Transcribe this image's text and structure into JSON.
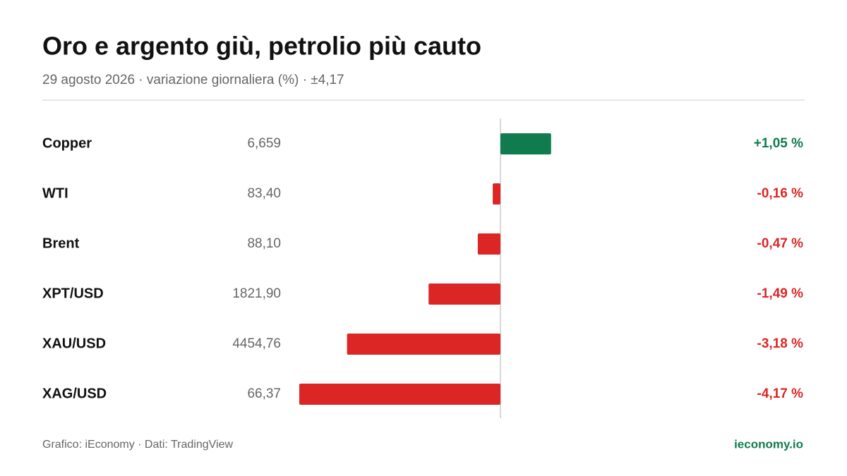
{
  "chart_data": {
    "type": "bar",
    "orientation": "horizontal",
    "title": "Oro e argento giù, petrolio più cauto",
    "subtitle": "29 agosto 2026 · variazione giornaliera (%) · ±4,17",
    "categories": [
      "Copper",
      "WTI",
      "Brent",
      "XPT/USD",
      "XAU/USD",
      "XAG/USD"
    ],
    "prices": [
      "6,659",
      "83,40",
      "88,10",
      "1821,90",
      "4454,76",
      "66,37"
    ],
    "values": [
      1.05,
      -0.16,
      -0.47,
      -1.49,
      -3.18,
      -4.17
    ],
    "value_labels": [
      "+1,05 %",
      "-0,16 %",
      "-0,47 %",
      "-1,49 %",
      "-3,18 %",
      "-4,17 %"
    ],
    "xlim": [
      -4.17,
      4.17
    ],
    "positive_color": "#0f7b4f",
    "negative_color": "#dc2626",
    "source": "Grafico: iEconomy · Dati: TradingView",
    "brand": "ieconomy.io"
  }
}
